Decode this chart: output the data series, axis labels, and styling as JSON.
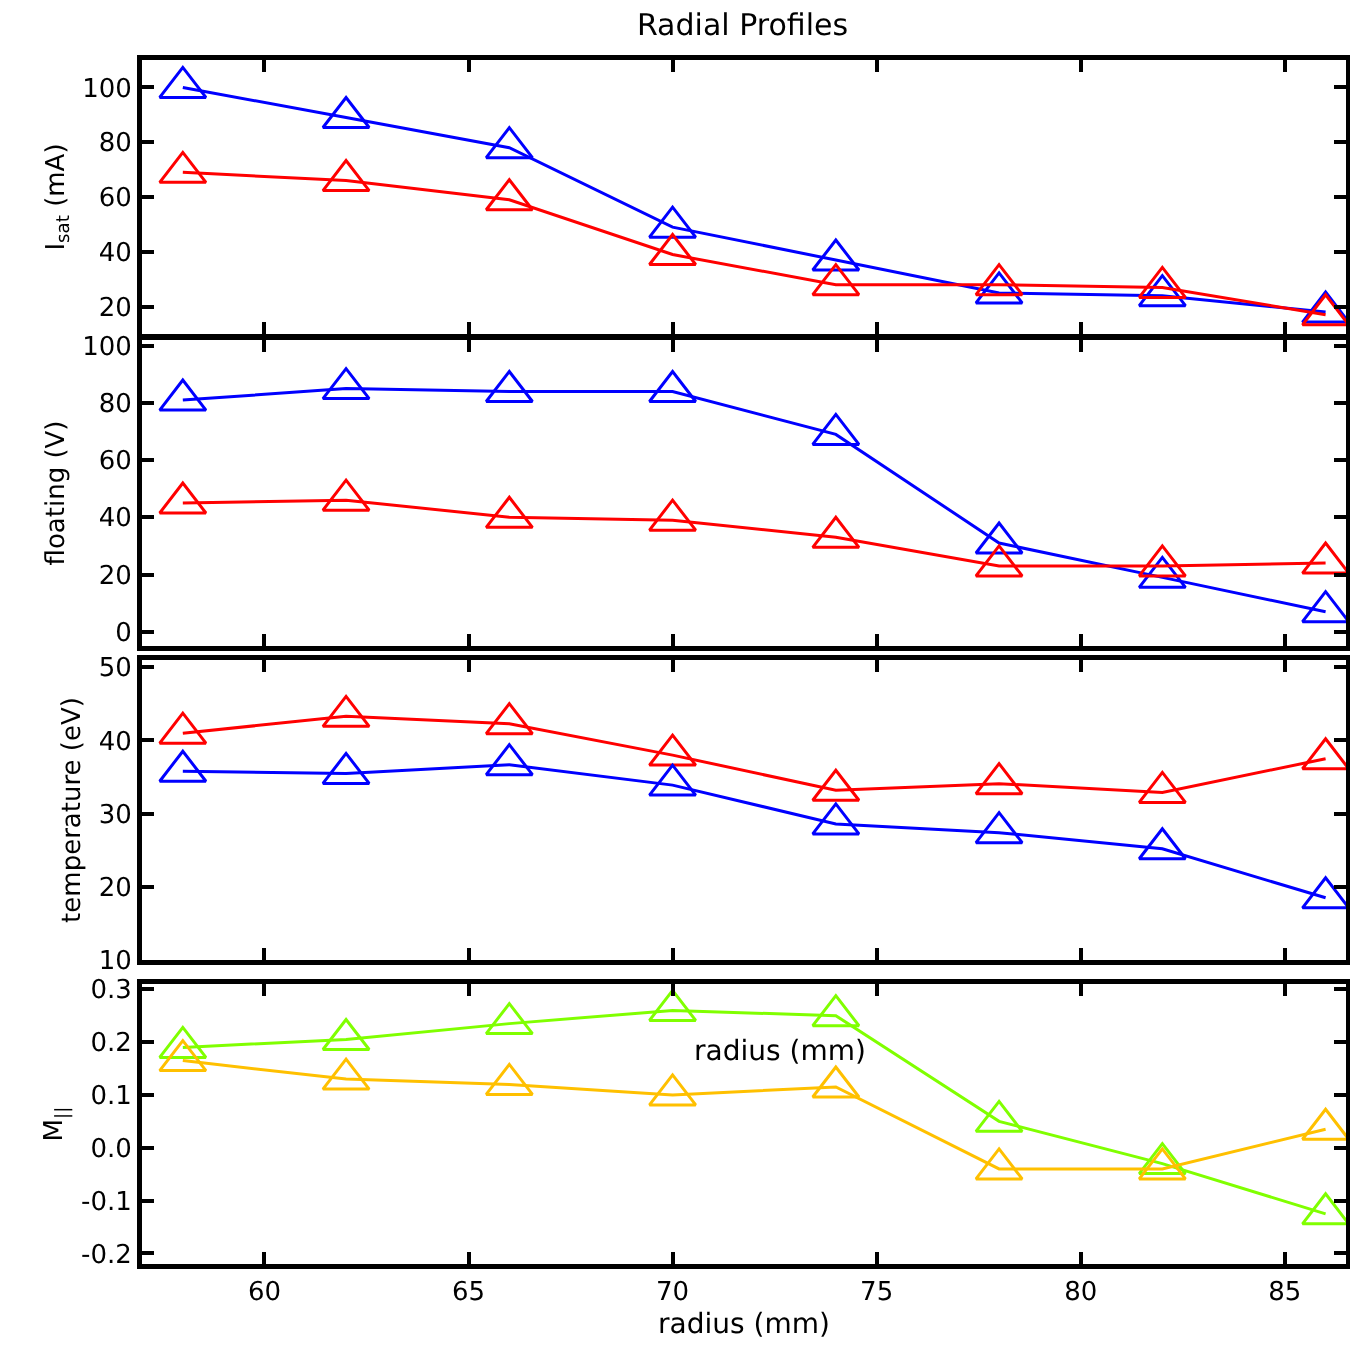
{
  "chart_data": [
    {
      "type": "line",
      "title": "Radial Profiles",
      "ylabel": "I$_{sat}$ (mA)",
      "x": [
        58,
        62,
        66,
        70,
        74,
        78,
        82,
        86
      ],
      "xlim": [
        57,
        86.5
      ],
      "xticks": [
        60,
        65,
        70,
        75,
        80,
        85
      ],
      "ylim": [
        10,
        110
      ],
      "yticks": [
        20,
        40,
        60,
        80,
        100
      ],
      "marker": "triangle",
      "grid": false,
      "tick_labels": "y",
      "series": [
        {
          "color": "#0000ff",
          "values": [
            100,
            89,
            78,
            49,
            37,
            25,
            24,
            18
          ]
        },
        {
          "color": "#ff0000",
          "values": [
            69,
            66,
            59,
            39,
            28,
            28,
            27,
            17
          ]
        }
      ]
    },
    {
      "type": "line",
      "ylabel": "floating (V)",
      "x": [
        58,
        62,
        66,
        70,
        74,
        78,
        82,
        86
      ],
      "xlim": [
        57,
        86.5
      ],
      "xticks": [
        60,
        65,
        70,
        75,
        80,
        85
      ],
      "ylim": [
        -5,
        102
      ],
      "yticks": [
        0,
        20,
        40,
        60,
        80,
        100
      ],
      "marker": "triangle",
      "grid": false,
      "tick_labels": "y",
      "series": [
        {
          "color": "#0000ff",
          "values": [
            81,
            85,
            84,
            84,
            69,
            31,
            19,
            7
          ]
        },
        {
          "color": "#ff0000",
          "values": [
            45,
            46,
            40,
            39,
            33,
            23,
            23,
            24
          ]
        }
      ]
    },
    {
      "type": "line",
      "ylabel": "temperature (eV)",
      "x": [
        58,
        62,
        66,
        70,
        74,
        78,
        82,
        86
      ],
      "xlim": [
        57,
        86.5
      ],
      "xticks": [
        60,
        65,
        70,
        75,
        80,
        85
      ],
      "ylim": [
        10,
        51
      ],
      "yticks": [
        10,
        20,
        30,
        40,
        50
      ],
      "marker": "triangle",
      "grid": false,
      "tick_labels": "y",
      "series": [
        {
          "color": "#ff0000",
          "values": [
            41,
            43.3,
            42.3,
            38,
            33.2,
            34.1,
            32.9,
            37.5
          ]
        },
        {
          "color": "#0000ff",
          "values": [
            35.8,
            35.5,
            36.7,
            33.9,
            28.6,
            27.4,
            25.2,
            18.5
          ]
        }
      ]
    },
    {
      "type": "line",
      "ylabel": "M$_{||}$",
      "xlabel": "radius (mm)",
      "annotations": [
        "radius (mm)"
      ],
      "x": [
        58,
        62,
        66,
        70,
        74,
        78,
        82,
        86
      ],
      "xlim": [
        57,
        86.5
      ],
      "xticks": [
        60,
        65,
        70,
        75,
        80,
        85
      ],
      "ylim": [
        -0.22,
        0.31
      ],
      "yticks": [
        {
          "value": -0.2,
          "label": "-0.2"
        },
        {
          "value": -0.1,
          "label": "-0.1"
        },
        {
          "value": 0,
          "label": "0.0"
        },
        0.1,
        0.2,
        0.3
      ],
      "marker": "triangle",
      "grid": false,
      "series": [
        {
          "color": "#80ff00",
          "values": [
            0.19,
            0.205,
            0.235,
            0.26,
            0.25,
            0.05,
            -0.03,
            -0.125
          ]
        },
        {
          "color": "#ffc000",
          "values": [
            0.165,
            0.13,
            0.12,
            0.1,
            0.115,
            -0.04,
            -0.04,
            0.035
          ]
        }
      ]
    }
  ]
}
